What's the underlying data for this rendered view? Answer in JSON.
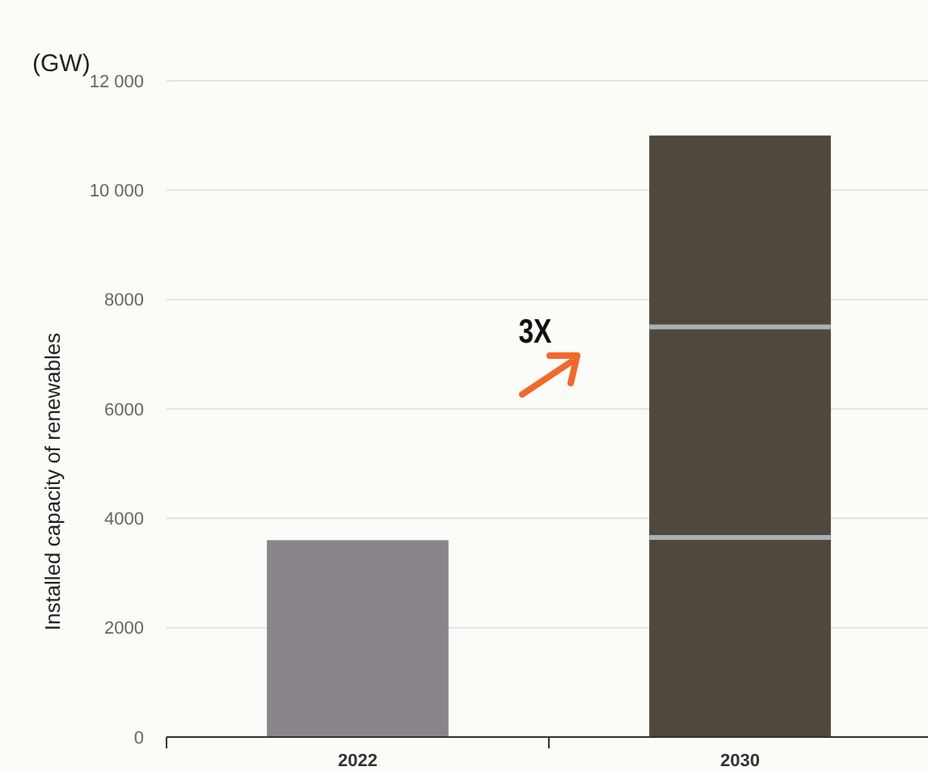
{
  "chart_data": {
    "type": "bar",
    "stacked": true,
    "ylabel": "Installed capacity of renewables",
    "annotations": [
      "(GW)",
      "3X"
    ],
    "categories": [
      "2022",
      "2030"
    ],
    "series": [
      {
        "colors": [
          "#8a858b",
          "#4f483d"
        ],
        "values": [
          3600,
          3650
        ]
      },
      {
        "color": "#4f483d",
        "values": [
          null,
          3850
        ]
      },
      {
        "color": "#4f483d",
        "values": [
          null,
          3500
        ]
      }
    ],
    "ylim": [
      0,
      12000
    ],
    "yticks": [
      0,
      2000,
      4000,
      6000,
      8000,
      {
        "value": 10000,
        "label": "10 000"
      },
      {
        "value": 12000,
        "label": "12 000"
      }
    ],
    "grid": "y"
  }
}
